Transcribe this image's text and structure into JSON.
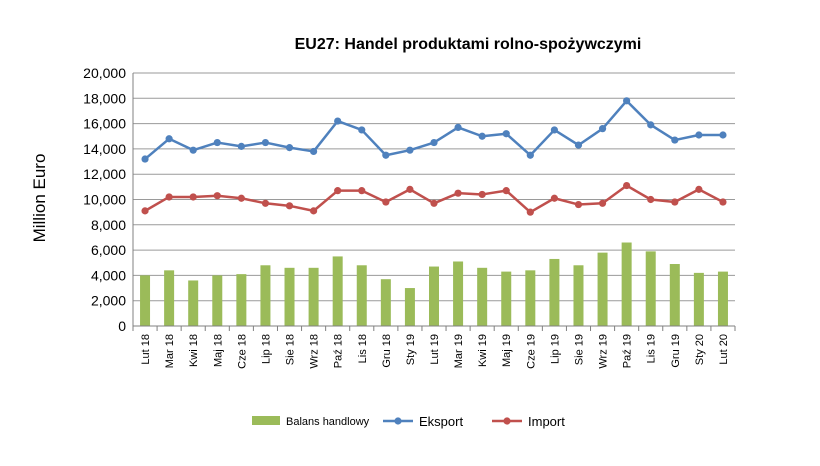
{
  "chart_data": {
    "type": "bar+line",
    "title": "EU27: Handel produktami rolno-spożywczymi",
    "ylabel": "Million Euro",
    "xlabel": "",
    "ylim": [
      0,
      20000
    ],
    "yticks": [
      0,
      2000,
      4000,
      6000,
      8000,
      10000,
      12000,
      14000,
      16000,
      18000,
      20000
    ],
    "ytick_labels": [
      "0",
      "2,000",
      "4,000",
      "6,000",
      "8,000",
      "10,000",
      "12,000",
      "14,000",
      "16,000",
      "18,000",
      "20,000"
    ],
    "grid": true,
    "legend_position": "bottom",
    "categories": [
      "Lut 18",
      "Mar 18",
      "Kwi 18",
      "Maj 18",
      "Cze 18",
      "Lip 18",
      "Sie 18",
      "Wrz 18",
      "Paź 18",
      "Lis 18",
      "Gru 18",
      "Sty 19",
      "Lut 19",
      "Mar 19",
      "Kwi 19",
      "Maj 19",
      "Cze 19",
      "Lip 19",
      "Sie 19",
      "Wrz 19",
      "Paź 19",
      "Lis 19",
      "Gru 19",
      "Sty 20",
      "Lut 20"
    ],
    "series": [
      {
        "name": "Balans handlowy",
        "type": "bar",
        "color": "#9bbb59",
        "values": [
          4000,
          4400,
          3600,
          4000,
          4100,
          4800,
          4600,
          4600,
          5500,
          4800,
          3700,
          3000,
          4700,
          5100,
          4600,
          4300,
          4400,
          5300,
          4800,
          5800,
          6600,
          5900,
          4900,
          4200,
          4300
        ]
      },
      {
        "name": "Eksport",
        "type": "line",
        "color": "#4f81bd",
        "values": [
          13200,
          14800,
          13900,
          14500,
          14200,
          14500,
          14100,
          13800,
          16200,
          15500,
          13500,
          13900,
          14500,
          15700,
          15000,
          15200,
          13500,
          15500,
          14300,
          15600,
          17800,
          15900,
          14700,
          15100,
          15100
        ]
      },
      {
        "name": "Import",
        "type": "line",
        "color": "#c0504d",
        "values": [
          9100,
          10200,
          10200,
          10300,
          10100,
          9700,
          9500,
          9100,
          10700,
          10700,
          9800,
          10800,
          9700,
          10500,
          10400,
          10700,
          9000,
          10100,
          9600,
          9700,
          11100,
          10000,
          9800,
          10800,
          9800
        ]
      }
    ]
  }
}
